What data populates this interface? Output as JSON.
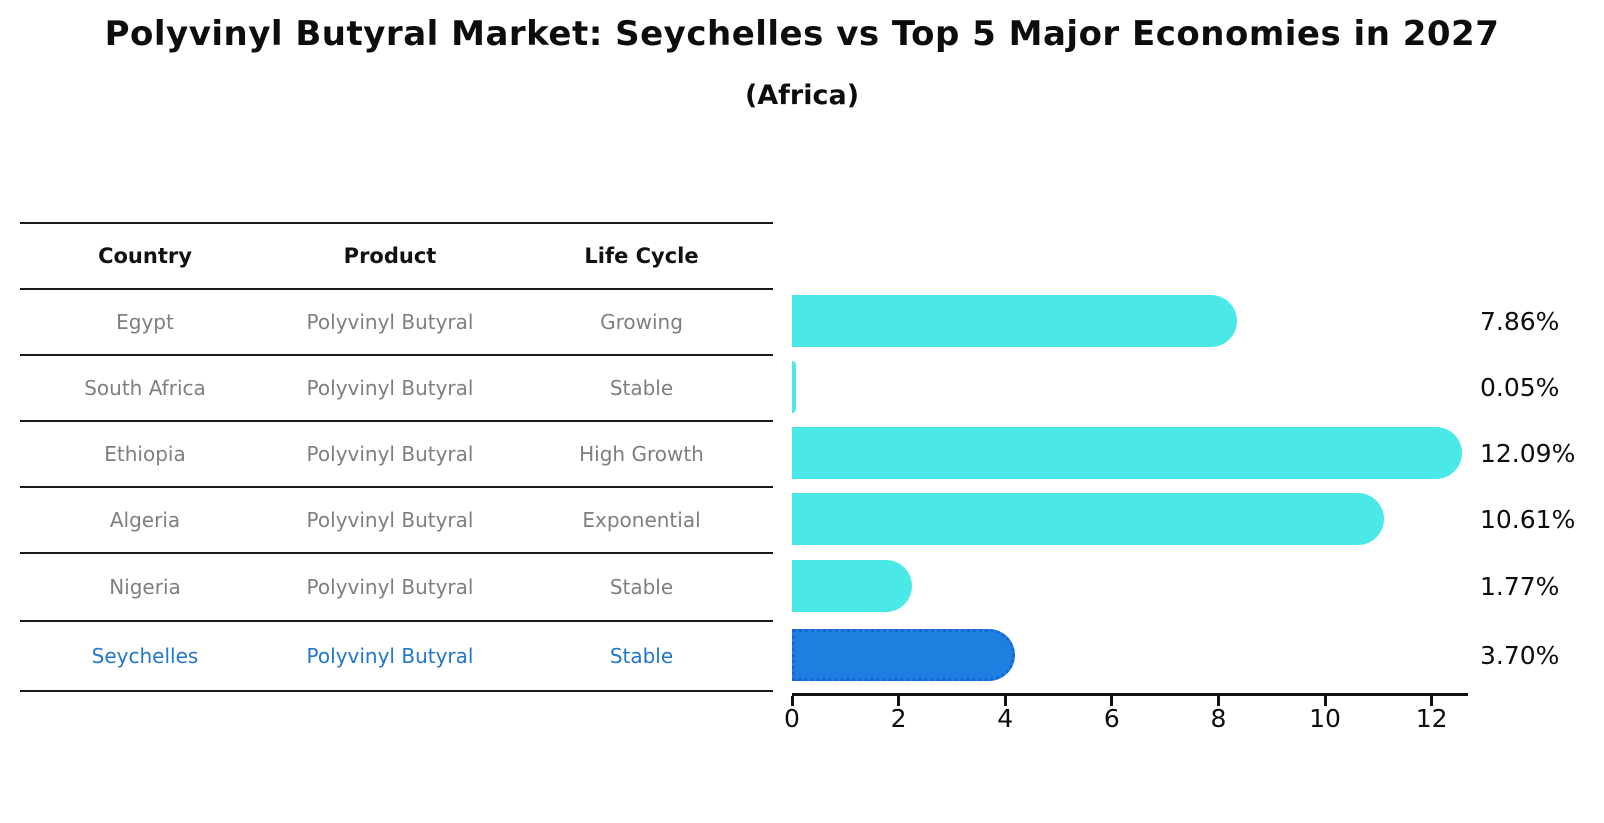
{
  "title": "Polyvinyl Butyral Market: Seychelles vs Top 5 Major Economies in 2027",
  "subtitle": "(Africa)",
  "table": {
    "headers": [
      "Country",
      "Product",
      "Life Cycle"
    ],
    "rows": [
      {
        "country": "Egypt",
        "product": "Polyvinyl Butyral",
        "life_cycle": "Growing",
        "highlight": false
      },
      {
        "country": "South Africa",
        "product": "Polyvinyl Butyral",
        "life_cycle": "Stable",
        "highlight": false
      },
      {
        "country": "Ethiopia",
        "product": "Polyvinyl Butyral",
        "life_cycle": "High Growth",
        "highlight": false
      },
      {
        "country": "Algeria",
        "product": "Polyvinyl Butyral",
        "life_cycle": "Exponential",
        "highlight": false
      },
      {
        "country": "Nigeria",
        "product": "Polyvinyl Butyral",
        "life_cycle": "Stable",
        "highlight": false
      },
      {
        "country": "Seychelles",
        "product": "Polyvinyl Butyral",
        "life_cycle": "Stable",
        "highlight": true
      }
    ]
  },
  "chart_data": {
    "type": "bar",
    "orientation": "horizontal",
    "title": "Polyvinyl Butyral Market: Seychelles vs Top 5 Major Economies in 2027",
    "subtitle": "(Africa)",
    "categories": [
      "Egypt",
      "South Africa",
      "Ethiopia",
      "Algeria",
      "Nigeria",
      "Seychelles"
    ],
    "values": [
      7.86,
      0.05,
      12.09,
      10.61,
      1.77,
      3.7
    ],
    "value_labels": [
      "7.86%",
      "0.05%",
      "12.09%",
      "10.61%",
      "1.77%",
      "3.70%"
    ],
    "xlabel": "",
    "ylabel": "",
    "xlim": [
      0,
      12.7
    ],
    "xticks": [
      0,
      2,
      4,
      6,
      8,
      10,
      12
    ],
    "grid": false,
    "legend": false,
    "highlight_index": 5
  },
  "colors": {
    "bar": "#4BE8E8",
    "highlight_bar": "#1F7FE0",
    "highlight_border": "#1566D8",
    "row_text": "#7F7F7F",
    "highlight_text": "#2176CD",
    "header_text": "#111111",
    "axis": "#111111"
  }
}
